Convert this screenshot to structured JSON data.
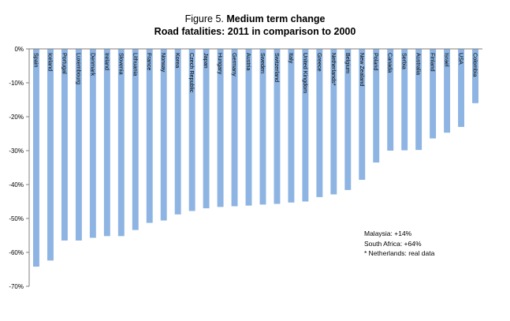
{
  "title": {
    "prefix": "Figure 5.",
    "line1": "Medium term change",
    "line2": "Road fatalities: 2011 in comparison to 2000"
  },
  "notes": [
    "Malaysia: +14%",
    "South Africa: +64%",
    "* Netherlands: real data"
  ],
  "chart_data": {
    "type": "bar",
    "orientation": "vertical",
    "categories": [
      "Spain",
      "Iceland",
      "Portugal",
      "Luxembourg",
      "Denmark",
      "Ireland",
      "Slovenia",
      "Lithuania",
      "France",
      "Norway",
      "Korea",
      "Czech Republic",
      "Japan",
      "Hungary",
      "Germany",
      "Austria",
      "Sweden",
      "Switzerland",
      "Italy",
      "United Kingdom",
      "Greece",
      "Netherlands*",
      "Belgium",
      "New Zealand",
      "Poland",
      "Canada",
      "Serbia",
      "Australia",
      "Finland",
      "Israel",
      "USA",
      "Colombia"
    ],
    "values": [
      -64.2,
      -62.4,
      -56.5,
      -56.5,
      -55.7,
      -55.2,
      -55.2,
      -53.4,
      -51.3,
      -50.6,
      -48.8,
      -47.8,
      -47.0,
      -46.6,
      -46.4,
      -46.2,
      -45.9,
      -45.7,
      -45.3,
      -45.0,
      -43.7,
      -42.9,
      -41.6,
      -38.6,
      -33.5,
      -30.0,
      -29.9,
      -29.8,
      -26.4,
      -24.7,
      -23.0,
      -16.0
    ],
    "yticks": [
      "0%",
      "-10%",
      "-20%",
      "-30%",
      "-40%",
      "-50%",
      "-60%",
      "-70%"
    ],
    "ylim": [
      -70,
      0
    ],
    "bar_color": "#8db4e2",
    "grid": false,
    "legend": false
  }
}
